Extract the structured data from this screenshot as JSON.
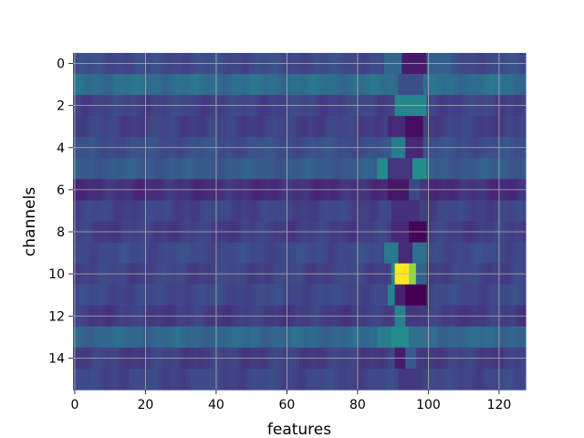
{
  "chart_data": {
    "type": "heatmap",
    "title": "",
    "xlabel": "features",
    "ylabel": "channels",
    "n_cols": 128,
    "n_rows": 16,
    "xlim": [
      -0.5,
      127.5
    ],
    "ylim": [
      15.5,
      -0.5
    ],
    "x_ticks": [
      0,
      20,
      40,
      60,
      80,
      100,
      120
    ],
    "y_ticks": [
      0,
      2,
      4,
      6,
      8,
      10,
      12,
      14
    ],
    "grid": true,
    "colormap": "viridis",
    "row_levels": [
      0.28,
      0.45,
      0.25,
      0.24,
      0.3,
      0.36,
      0.17,
      0.25,
      0.23,
      0.28,
      0.25,
      0.27,
      0.22,
      0.42,
      0.23,
      0.26
    ],
    "features": [
      {
        "row": 0,
        "x_start": 88,
        "x_end": 92,
        "value": 0.42
      },
      {
        "row": 0,
        "x_start": 93,
        "x_end": 99,
        "value": 0.1
      },
      {
        "row": 0,
        "x_start": 100,
        "x_end": 106,
        "value": 0.38
      },
      {
        "row": 1,
        "x_start": 92,
        "x_end": 98,
        "value": 0.3
      },
      {
        "row": 2,
        "x_start": 91,
        "x_end": 99,
        "value": 0.58
      },
      {
        "row": 3,
        "x_start": 89,
        "x_end": 94,
        "value": 0.15
      },
      {
        "row": 3,
        "x_start": 94,
        "x_end": 98,
        "value": 0.05
      },
      {
        "row": 4,
        "x_start": 90,
        "x_end": 93,
        "value": 0.52
      },
      {
        "row": 4,
        "x_start": 94,
        "x_end": 98,
        "value": 0.14
      },
      {
        "row": 5,
        "x_start": 86,
        "x_end": 89,
        "value": 0.6
      },
      {
        "row": 5,
        "x_start": 89,
        "x_end": 95,
        "value": 0.2
      },
      {
        "row": 5,
        "x_start": 96,
        "x_end": 99,
        "value": 0.62
      },
      {
        "row": 6,
        "x_start": 89,
        "x_end": 95,
        "value": 0.08
      },
      {
        "row": 6,
        "x_start": 95,
        "x_end": 97,
        "value": 0.28
      },
      {
        "row": 7,
        "x_start": 90,
        "x_end": 97,
        "value": 0.18
      },
      {
        "row": 8,
        "x_start": 90,
        "x_end": 95,
        "value": 0.15
      },
      {
        "row": 8,
        "x_start": 95,
        "x_end": 99,
        "value": 0.02
      },
      {
        "row": 9,
        "x_start": 88,
        "x_end": 92,
        "value": 0.5
      },
      {
        "row": 9,
        "x_start": 92,
        "x_end": 95,
        "value": 0.15
      },
      {
        "row": 9,
        "x_start": 96,
        "x_end": 99,
        "value": 0.45
      },
      {
        "row": 10,
        "x_start": 90,
        "x_end": 91,
        "value": 0.55
      },
      {
        "row": 10,
        "x_start": 91,
        "x_end": 95,
        "value": 1.0
      },
      {
        "row": 10,
        "x_start": 95,
        "x_end": 97,
        "value": 0.88
      },
      {
        "row": 10,
        "x_start": 97,
        "x_end": 99,
        "value": 0.4
      },
      {
        "row": 11,
        "x_start": 89,
        "x_end": 91,
        "value": 0.55
      },
      {
        "row": 11,
        "x_start": 91,
        "x_end": 94,
        "value": 0.12
      },
      {
        "row": 11,
        "x_start": 94,
        "x_end": 99,
        "value": 0.0
      },
      {
        "row": 12,
        "x_start": 91,
        "x_end": 94,
        "value": 0.55
      },
      {
        "row": 12,
        "x_start": 94,
        "x_end": 97,
        "value": 0.2
      },
      {
        "row": 13,
        "x_start": 86,
        "x_end": 90,
        "value": 0.52
      },
      {
        "row": 13,
        "x_start": 90,
        "x_end": 94,
        "value": 0.6
      },
      {
        "row": 13,
        "x_start": 95,
        "x_end": 102,
        "value": 0.46
      },
      {
        "row": 14,
        "x_start": 91,
        "x_end": 94,
        "value": 0.1
      },
      {
        "row": 14,
        "x_start": 94,
        "x_end": 96,
        "value": 0.35
      },
      {
        "row": 15,
        "x_start": 92,
        "x_end": 96,
        "value": 0.2
      }
    ]
  }
}
